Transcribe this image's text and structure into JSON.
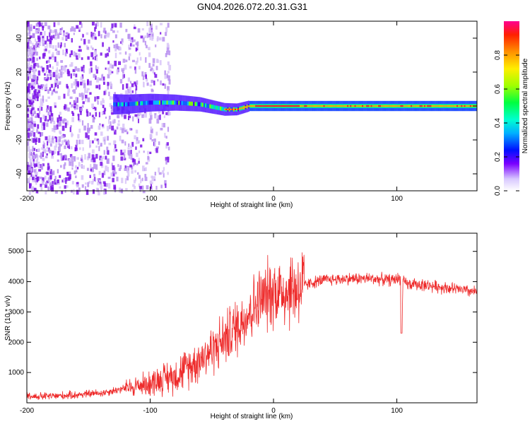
{
  "title": "GN04.2026.072.20.31.G31",
  "chart_data": [
    {
      "type": "heatmap",
      "name": "spectrogram",
      "xlabel": "Height of straight line (km)",
      "ylabel": "Frequency (Hz)",
      "xlim": [
        -200,
        165
      ],
      "ylim": [
        -50,
        50
      ],
      "xticks": [
        -200,
        -100,
        0,
        100
      ],
      "xtick_labels": [
        "-200",
        "-100",
        "0",
        "100"
      ],
      "yticks": [
        -40,
        -20,
        0,
        20,
        40
      ],
      "ytick_labels": [
        "-40",
        "-20",
        "0",
        "20",
        "40"
      ],
      "colorbar": {
        "label": "Normalized spectral amplitude",
        "range": [
          0,
          1
        ],
        "ticks": [
          0.0,
          0.2,
          0.4,
          0.6,
          0.8
        ],
        "tick_labels": [
          "0.0",
          "0.2",
          "0.4",
          "0.6",
          "0.8"
        ]
      },
      "description_points": {
        "center_track_x": [
          -120,
          -100,
          -80,
          -60,
          -40,
          -30,
          -20,
          0,
          20,
          60,
          100,
          140,
          165
        ],
        "center_track_freq": [
          1,
          2,
          2,
          1,
          -2,
          -2,
          0,
          0,
          0,
          0,
          0,
          0,
          0
        ]
      }
    },
    {
      "type": "line",
      "name": "snr",
      "xlabel": "Height of straight line (km)",
      "ylabel": "SNR (10 * v/v)",
      "xlim": [
        -200,
        165
      ],
      "ylim": [
        0,
        5600
      ],
      "xticks": [
        -200,
        -100,
        0,
        100
      ],
      "xtick_labels": [
        "-200",
        "-100",
        "0",
        "100"
      ],
      "yticks": [
        1000,
        2000,
        3000,
        4000,
        5000
      ],
      "ytick_labels": [
        "1000",
        "2000",
        "3000",
        "4000",
        "5000"
      ],
      "color": "#ff3030",
      "x": [
        -200,
        -180,
        -160,
        -150,
        -140,
        -120,
        -100,
        -90,
        -80,
        -70,
        -60,
        -50,
        -40,
        -30,
        -20,
        -10,
        0,
        10,
        20,
        30,
        40,
        60,
        80,
        95,
        100,
        103,
        104,
        105,
        110,
        120,
        140,
        165
      ],
      "y": [
        200,
        220,
        260,
        300,
        320,
        480,
        650,
        800,
        900,
        1150,
        1450,
        1750,
        2100,
        2500,
        3000,
        3400,
        3700,
        3700,
        3800,
        3950,
        4050,
        4100,
        4100,
        4050,
        4100,
        4100,
        2300,
        4000,
        3900,
        3900,
        3800,
        3650
      ]
    }
  ]
}
